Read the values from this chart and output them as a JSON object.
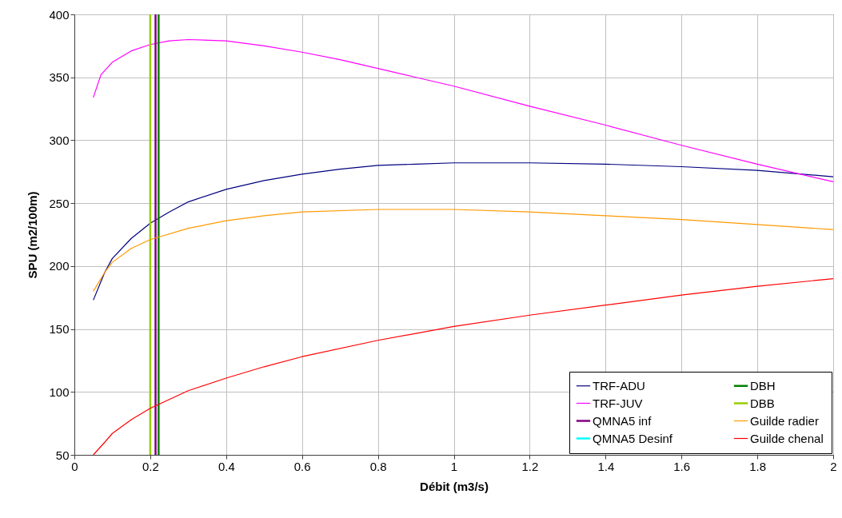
{
  "chart_data": {
    "type": "line",
    "xlabel": "Débit (m3/s)",
    "ylabel": "SPU (m2/100m)",
    "xlim": [
      0,
      2
    ],
    "ylim": [
      50,
      400
    ],
    "xticks": [
      {
        "value": 0,
        "label": "0"
      },
      0.2,
      0.4,
      0.6,
      0.8,
      {
        "value": 1,
        "label": "1"
      },
      1.2,
      1.4,
      1.6,
      1.8,
      {
        "value": 2,
        "label": "2"
      }
    ],
    "yticks": [
      50,
      100,
      150,
      200,
      250,
      300,
      350,
      400
    ],
    "grid": true,
    "legend": "bottom right",
    "series": [
      {
        "name": "TRF-ADU",
        "color": "#000080",
        "x": [
          0.05,
          0.08,
          0.1,
          0.15,
          0.2,
          0.25,
          0.3,
          0.4,
          0.5,
          0.6,
          0.7,
          0.8,
          0.9,
          1.0,
          1.2,
          1.4,
          1.6,
          1.8,
          2.0
        ],
        "values": [
          173,
          195,
          206,
          222,
          234,
          243,
          251,
          261,
          268,
          273,
          277,
          280,
          281,
          282,
          282,
          281,
          279,
          276,
          271
        ]
      },
      {
        "name": "TRF-JUV",
        "color": "#ff00ff",
        "x": [
          0.05,
          0.07,
          0.1,
          0.15,
          0.2,
          0.25,
          0.3,
          0.4,
          0.5,
          0.6,
          0.7,
          0.8,
          0.9,
          1.0,
          1.2,
          1.4,
          1.6,
          1.8,
          2.0
        ],
        "values": [
          334,
          352,
          362,
          371,
          376,
          379,
          380,
          379,
          375,
          370,
          364,
          357,
          350,
          343,
          327,
          312,
          296,
          281,
          267
        ]
      },
      {
        "name": "QMNA5 inf",
        "color": "#800080",
        "x": [
          0.214,
          0.214
        ],
        "values": [
          50,
          400
        ]
      },
      {
        "name": "QMNA5 Desinf",
        "color": "#00ffff",
        "x": [
          null,
          null
        ],
        "values": [
          null,
          null
        ]
      },
      {
        "name": "DBH",
        "color": "#008000",
        "x": [
          0.222,
          0.222
        ],
        "values": [
          50,
          400
        ]
      },
      {
        "name": "DBB",
        "color": "#99cc00",
        "x": [
          0.2,
          0.2
        ],
        "values": [
          50,
          400
        ]
      },
      {
        "name": "Guilde radier",
        "color": "#ff9900",
        "x": [
          0.05,
          0.08,
          0.1,
          0.15,
          0.2,
          0.3,
          0.4,
          0.5,
          0.6,
          0.8,
          1.0,
          1.2,
          1.4,
          1.6,
          1.8,
          2.0
        ],
        "values": [
          180,
          195,
          203,
          214,
          221,
          230,
          236,
          240,
          243,
          245,
          245,
          243,
          240,
          237,
          233,
          229
        ]
      },
      {
        "name": "Guilde chenal",
        "color": "#ff0000",
        "x": [
          0.05,
          0.08,
          0.1,
          0.15,
          0.2,
          0.3,
          0.4,
          0.5,
          0.6,
          0.8,
          1.0,
          1.2,
          1.4,
          1.6,
          1.8,
          2.0
        ],
        "values": [
          50,
          60,
          67,
          78,
          87,
          101,
          111,
          120,
          128,
          141,
          152,
          161,
          169,
          177,
          184,
          190
        ]
      }
    ]
  }
}
